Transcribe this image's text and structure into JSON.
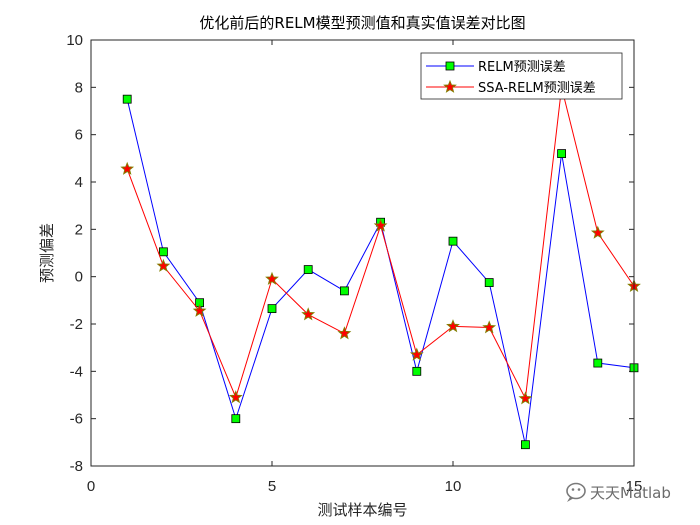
{
  "watermark": {
    "icon": "wechat-icon",
    "text": "天天Matlab"
  },
  "chart_data": {
    "type": "line",
    "title": "优化前后的RELM模型预测值和真实值误差对比图",
    "xlabel": "测试样本编号",
    "ylabel": "预测偏差",
    "xlim": [
      0,
      15
    ],
    "ylim": [
      -8,
      10
    ],
    "xticks": [
      0,
      5,
      10,
      15
    ],
    "yticks": [
      -8,
      -6,
      -4,
      -2,
      0,
      2,
      4,
      6,
      8,
      10
    ],
    "grid": false,
    "legend_position": "top-right",
    "x": [
      1,
      2,
      3,
      4,
      5,
      6,
      7,
      8,
      9,
      10,
      11,
      12,
      13,
      14,
      15
    ],
    "series": [
      {
        "name": "RELM预测误差",
        "color": "#0000ff",
        "marker": "square",
        "marker_fill": "#00ff00",
        "marker_edge": "#000000",
        "values": [
          7.5,
          1.05,
          -1.1,
          -6.0,
          -1.35,
          0.3,
          -0.6,
          2.3,
          -4.0,
          1.5,
          -0.25,
          -7.1,
          5.2,
          -3.65,
          -3.85
        ]
      },
      {
        "name": "SSA-RELM预测误差",
        "color": "#ff0000",
        "marker": "star",
        "marker_fill": "#ff0000",
        "marker_edge": "#808000",
        "values": [
          4.55,
          0.45,
          -1.45,
          -5.1,
          -0.1,
          -1.6,
          -2.4,
          2.15,
          -3.3,
          -2.1,
          -2.15,
          -5.15,
          8.0,
          1.85,
          -0.4
        ]
      }
    ]
  }
}
